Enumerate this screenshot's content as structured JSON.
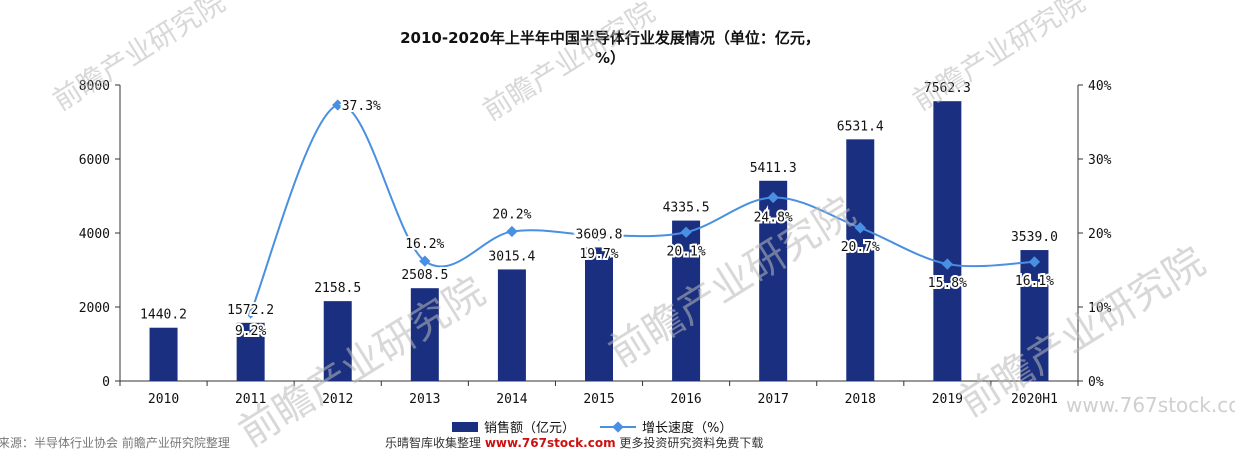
{
  "chart_data": {
    "type": "bar",
    "title_line1": "2010-2020年上半年中国半导体行业发展情况（单位：亿元，",
    "title_line2": "%）",
    "categories": [
      "2010",
      "2011",
      "2012",
      "2013",
      "2014",
      "2015",
      "2016",
      "2017",
      "2018",
      "2019",
      "2020H1"
    ],
    "series": [
      {
        "name": "销售额（亿元）",
        "type": "bar",
        "axis": "left",
        "values": [
          1440.2,
          1572.2,
          2158.5,
          2508.5,
          3015.4,
          3609.8,
          4335.5,
          5411.3,
          6531.4,
          7562.3,
          3539.0
        ],
        "labels": [
          "1440.2",
          "1572.2",
          "2158.5",
          "2508.5",
          "3015.4",
          "3609.8",
          "4335.5",
          "5411.3",
          "6531.4",
          "7562.3",
          "3539.0"
        ]
      },
      {
        "name": "增长速度（%）",
        "type": "line",
        "axis": "right",
        "values": [
          null,
          9.2,
          37.3,
          16.2,
          20.2,
          19.7,
          20.1,
          24.8,
          20.7,
          15.8,
          16.1
        ],
        "labels": [
          "",
          "9.2%",
          "37.3%",
          "16.2%",
          "20.2%",
          "19.7%",
          "20.1%",
          "24.8%",
          "20.7%",
          "15.8%",
          "16.1%"
        ]
      }
    ],
    "ylim_left": [
      0,
      8000
    ],
    "yticks_left": [
      "0",
      "2000",
      "4000",
      "6000",
      "8000"
    ],
    "ylim_right": [
      0,
      40
    ],
    "yticks_right": [
      "0%",
      "10%",
      "20%",
      "30%",
      "40%"
    ],
    "legend_position": "bottom",
    "colors": {
      "bar": "#1a2f80",
      "line": "#4a90e2"
    }
  },
  "footer": {
    "source_prefix": "来源：半导体行业协会 前瞻产业研究院整理",
    "collect_prefix": "乐晴智库收集整理",
    "site": "www.767stock.com",
    "collect_suffix": "更多投资研究资料免费下载"
  },
  "watermarks": {
    "brand": "前瞻产业研究院",
    "site_url": "www.767stock.com"
  }
}
